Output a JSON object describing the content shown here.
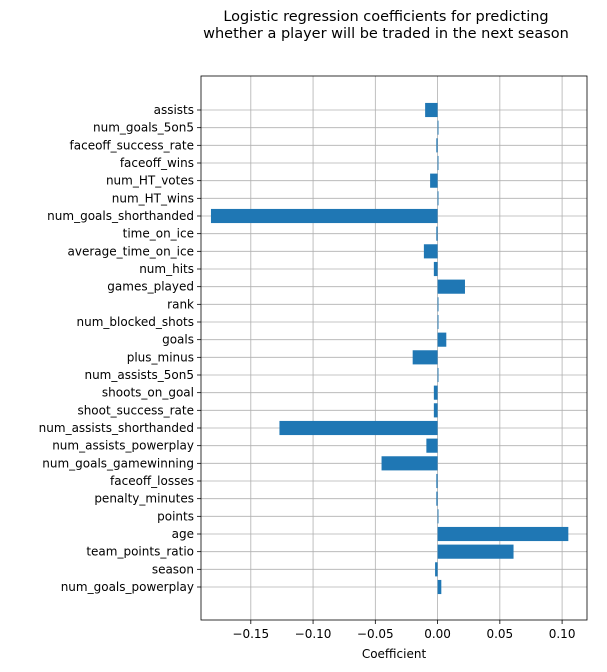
{
  "chart_data": {
    "type": "bar",
    "orientation": "horizontal",
    "title": "Logistic regression coefficients for predicting\nwhether a player will be traded in the next season",
    "xlabel": "Coefficient",
    "ylabel": "",
    "xlim": [
      -0.19,
      0.12
    ],
    "xticks": [
      -0.15,
      -0.1,
      -0.05,
      0.0,
      0.05,
      0.1
    ],
    "xtick_labels": [
      "−0.15",
      "−0.10",
      "−0.05",
      "0.00",
      "0.05",
      "0.10"
    ],
    "grid": true,
    "bar_color": "#1f77b4",
    "categories": [
      "assists",
      "num_goals_5on5",
      "faceoff_success_rate",
      "faceoff_wins",
      "num_HT_votes",
      "num_HT_wins",
      "num_goals_shorthanded",
      "time_on_ice",
      "average_time_on_ice",
      "num_hits",
      "games_played",
      "rank",
      "num_blocked_shots",
      "goals",
      "plus_minus",
      "num_assists_5on5",
      "shoots_on_goal",
      "shoot_success_rate",
      "num_assists_shorthanded",
      "num_assists_powerplay",
      "num_goals_gamewinning",
      "faceoff_losses",
      "penalty_minutes",
      "points",
      "age",
      "team_points_ratio",
      "season",
      "num_goals_powerplay"
    ],
    "values": [
      -0.01,
      0.0,
      -0.001,
      0.0,
      -0.006,
      0.0,
      -0.182,
      -0.001,
      -0.011,
      -0.003,
      0.022,
      0.0,
      0.0,
      0.007,
      -0.02,
      0.0,
      -0.003,
      -0.003,
      -0.127,
      -0.009,
      -0.045,
      -0.001,
      -0.001,
      0.0,
      0.105,
      0.061,
      -0.002,
      0.003
    ]
  }
}
